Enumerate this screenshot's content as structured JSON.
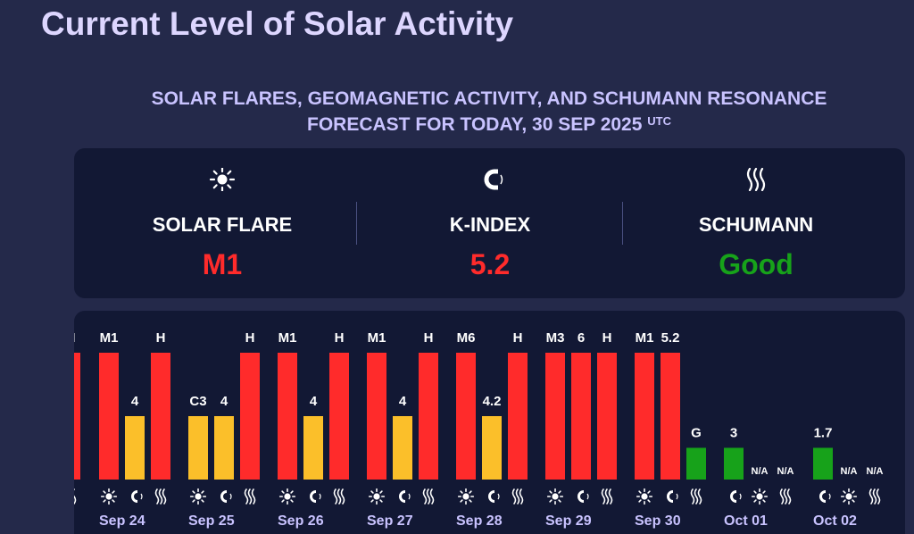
{
  "page": {
    "title": "Current Level of Solar Activity",
    "subtitle_line1": "SOLAR FLARES, GEOMAGNETIC ACTIVITY, AND SCHUMANN RESONANCE",
    "subtitle_line2": "FORECAST FOR TODAY, 30 SEP 2025",
    "subtitle_sup": "UTC"
  },
  "summary": {
    "solar_flare": {
      "label": "SOLAR FLARE",
      "value": "M1",
      "color": "#ff2b2b",
      "icon": "sun-icon"
    },
    "k_index": {
      "label": "K-INDEX",
      "value": "5.2",
      "color": "#ff2b2b",
      "icon": "magnet-icon"
    },
    "schumann": {
      "label": "SCHUMANN",
      "value": "Good",
      "color": "#17a21a",
      "icon": "waves-icon"
    }
  },
  "colors": {
    "red": "#ff2b2b",
    "yellow": "#fbbf2a",
    "green": "#17a21a"
  },
  "chart_data": {
    "type": "bar",
    "series_kinds": [
      "solar-flare",
      "k-index",
      "schumann"
    ],
    "partial_left": {
      "label": "H",
      "level": 1.0,
      "color": "red"
    },
    "days": [
      {
        "date": "Sep 24",
        "bars": [
          {
            "label": "M1",
            "level": 1.0,
            "color": "red"
          },
          {
            "label": "4",
            "level": 0.5,
            "color": "yellow"
          },
          {
            "label": "H",
            "level": 1.0,
            "color": "red"
          }
        ]
      },
      {
        "date": "Sep 25",
        "bars": [
          {
            "label": "C3",
            "level": 0.5,
            "color": "yellow"
          },
          {
            "label": "4",
            "level": 0.5,
            "color": "yellow"
          },
          {
            "label": "H",
            "level": 1.0,
            "color": "red"
          }
        ]
      },
      {
        "date": "Sep 26",
        "bars": [
          {
            "label": "M1",
            "level": 1.0,
            "color": "red"
          },
          {
            "label": "4",
            "level": 0.5,
            "color": "yellow"
          },
          {
            "label": "H",
            "level": 1.0,
            "color": "red"
          }
        ]
      },
      {
        "date": "Sep 27",
        "bars": [
          {
            "label": "M1",
            "level": 1.0,
            "color": "red"
          },
          {
            "label": "4",
            "level": 0.5,
            "color": "yellow"
          },
          {
            "label": "H",
            "level": 1.0,
            "color": "red"
          }
        ]
      },
      {
        "date": "Sep 28",
        "bars": [
          {
            "label": "M6",
            "level": 1.0,
            "color": "red"
          },
          {
            "label": "4.2",
            "level": 0.5,
            "color": "yellow"
          },
          {
            "label": "H",
            "level": 1.0,
            "color": "red"
          }
        ]
      },
      {
        "date": "Sep 29",
        "bars": [
          {
            "label": "M3",
            "level": 1.0,
            "color": "red"
          },
          {
            "label": "6",
            "level": 1.0,
            "color": "red"
          },
          {
            "label": "H",
            "level": 1.0,
            "color": "red"
          }
        ]
      },
      {
        "date": "Sep 30",
        "bars": [
          {
            "label": "M1",
            "level": 1.0,
            "color": "red"
          },
          {
            "label": "5.2",
            "level": 1.0,
            "color": "red"
          },
          {
            "label": "G",
            "level": 0.25,
            "color": "green"
          }
        ]
      },
      {
        "date": "Oct 01",
        "bars": [
          {
            "label": "3",
            "level": 0.25,
            "color": "green"
          },
          {
            "label": "N/A",
            "level": 0,
            "color": "none"
          },
          {
            "label": "N/A",
            "level": 0,
            "color": "none"
          }
        ]
      },
      {
        "date": "Oct 02",
        "bars": [
          {
            "label": "1.7",
            "level": 0.25,
            "color": "green"
          },
          {
            "label": "N/A",
            "level": 0,
            "color": "none"
          },
          {
            "label": "N/A",
            "level": 0,
            "color": "none"
          }
        ]
      }
    ]
  }
}
